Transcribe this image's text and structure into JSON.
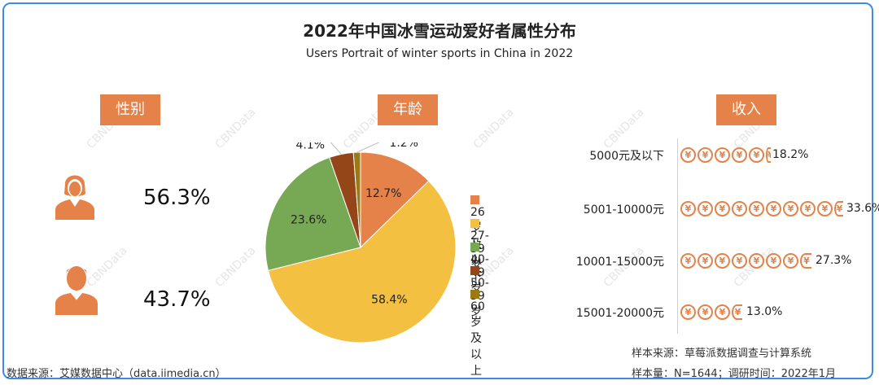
{
  "title": "2022年中国冰雪运动爱好者属性分布",
  "subtitle": "Users Portrait of winter sports in China in 2022",
  "watermark": "CBNData",
  "sections": {
    "gender": "性别",
    "age": "年龄",
    "income": "收入"
  },
  "gender": {
    "female": {
      "value": "56.3%",
      "icon": "female-person-icon"
    },
    "male": {
      "value": "43.7%",
      "icon": "male-person-icon"
    }
  },
  "icon_colors": {
    "accent": "#e5824a"
  },
  "chart_data": [
    {
      "type": "pie",
      "title": "年龄",
      "labels": [
        "26岁及以下",
        "27-39岁",
        "40-49岁",
        "50-59岁",
        "60岁及以上"
      ],
      "values": [
        12.7,
        58.4,
        23.6,
        4.1,
        1.2
      ],
      "value_labels": [
        "12.7%",
        "58.4%",
        "23.6%",
        "4.1%",
        "1.2%"
      ],
      "colors": [
        "#e5824a",
        "#f4c042",
        "#77a854",
        "#954619",
        "#9a7a14"
      ],
      "legend_position": "right"
    },
    {
      "type": "bar",
      "title": "收入",
      "categories": [
        "5000元及以下",
        "5001-10000元",
        "10001-15000元",
        "15001-20000元"
      ],
      "values": [
        18.2,
        33.6,
        27.3,
        13.0
      ],
      "value_labels": [
        "18.2%",
        "33.6%",
        "27.3%",
        "13.0%"
      ],
      "mark": "yuan-coin-icon",
      "coin_symbol": "¥"
    }
  ],
  "source_left": "数据来源：艾媒数据中心（data.iimedia.cn）",
  "source_right": [
    "样本来源：草莓派数据调查与计算系统",
    "样本量：N=1644；调研时间：2022年1月"
  ]
}
